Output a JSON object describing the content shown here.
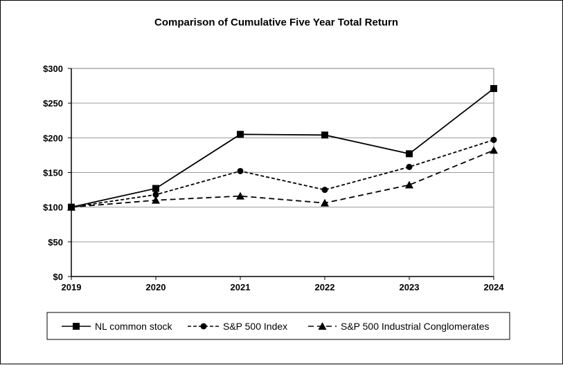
{
  "chart_data": {
    "type": "line",
    "title": "Comparison of Cumulative Five Year Total Return",
    "xlabel": "",
    "ylabel": "",
    "categories": [
      "2019",
      "2020",
      "2021",
      "2022",
      "2023",
      "2024"
    ],
    "ylim": [
      0,
      300
    ],
    "yticks": [
      0,
      50,
      100,
      150,
      200,
      250,
      300
    ],
    "ytick_labels": [
      "$0",
      "$50",
      "$100",
      "$150",
      "$200",
      "$250",
      "$300"
    ],
    "grid": true,
    "legend_position": "bottom",
    "series": [
      {
        "name": "NL common stock",
        "values": [
          100,
          127,
          205,
          204,
          177,
          271
        ],
        "marker": "square",
        "line": "solid",
        "color": "#000000"
      },
      {
        "name": "S&P 500 Index",
        "values": [
          100,
          118,
          152,
          125,
          158,
          197
        ],
        "marker": "circle",
        "line": "dashed",
        "color": "#000000"
      },
      {
        "name": "S&P 500 Industrial Conglomerates",
        "values": [
          100,
          110,
          116,
          106,
          132,
          182
        ],
        "marker": "triangle",
        "line": "dashed",
        "color": "#000000"
      }
    ]
  }
}
